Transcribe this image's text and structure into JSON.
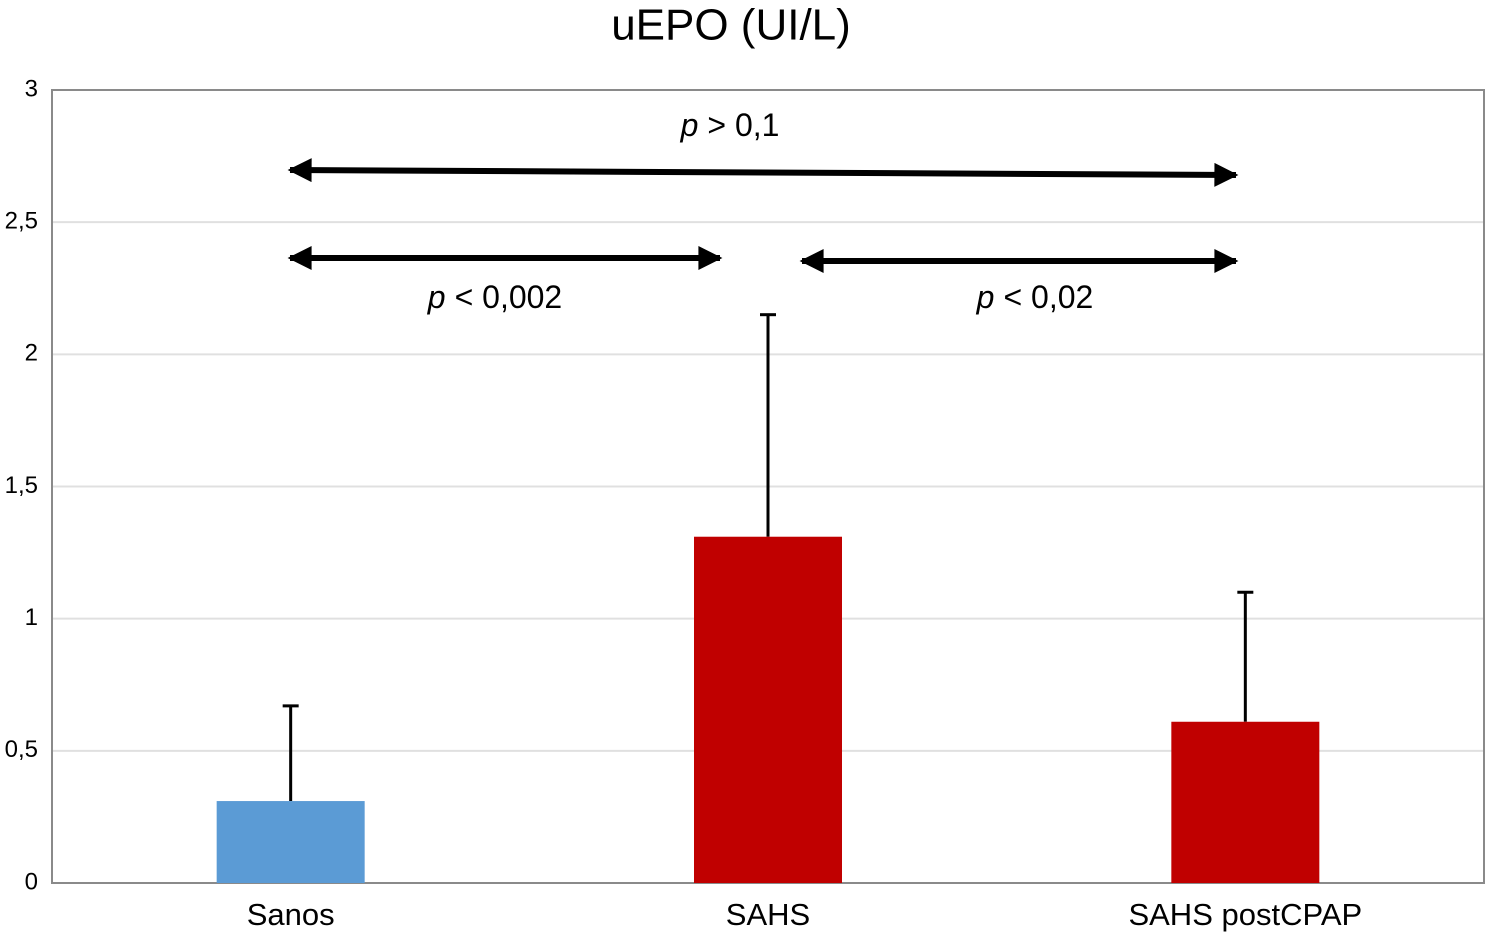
{
  "chart_data": {
    "type": "bar",
    "title": "uEPO (UI/L)",
    "categories": [
      "Sanos",
      "SAHS",
      "SAHS postCPAP"
    ],
    "values": [
      0.31,
      1.31,
      0.61
    ],
    "errors": [
      0.36,
      0.84,
      0.49
    ],
    "colors": [
      "#5b9bd5",
      "#c00000",
      "#c00000"
    ],
    "ylim": [
      0,
      3
    ],
    "yticks": [
      0,
      {
        "value": 0.5,
        "label": "0,5"
      },
      1,
      {
        "value": 1.5,
        "label": "1,5"
      },
      2,
      {
        "value": 2.5,
        "label": "2,5"
      },
      3
    ],
    "grid": true,
    "annotations": [
      {
        "variable": "p",
        "relation": "> 0,1"
      },
      {
        "variable": "p",
        "relation": "< 0,002"
      },
      {
        "variable": "p",
        "relation": "< 0,02"
      }
    ]
  }
}
